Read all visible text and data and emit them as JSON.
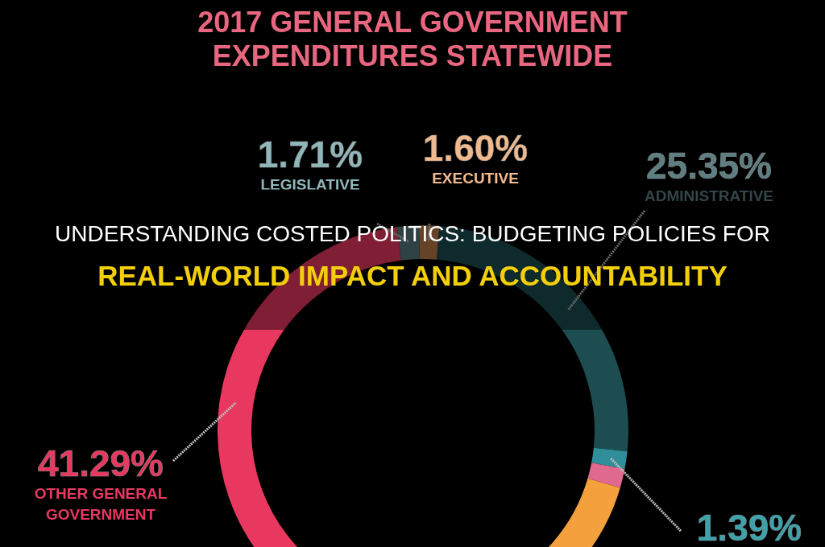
{
  "chart_data": {
    "type": "donut",
    "title": "2017 GENERAL GOVERNMENT EXPENDITURES STATEWIDE",
    "categories": [
      "EXECUTIVE",
      "ADMINISTRATIVE",
      null,
      null,
      null,
      "OTHER GENERAL GOVERNMENT",
      "LEGISLATIVE"
    ],
    "values": [
      1.6,
      25.35,
      1.39,
      1.5,
      27.16,
      41.29,
      1.71
    ],
    "colors": [
      "#b87a45",
      "#1d4d50",
      "#2f8e99",
      "#e0698f",
      "#f4a03c",
      "#e8385f",
      "#55787c"
    ],
    "value_labels": [
      "1.60%",
      "25.35%",
      "1.39%",
      null,
      null,
      "41.29%",
      "1.71%"
    ],
    "annotations": [
      "UNDERSTANDING COSTED POLITICS: BUDGETING POLICIES FOR",
      "REAL-WORLD IMPACT AND ACCOUNTABILITY"
    ]
  }
}
